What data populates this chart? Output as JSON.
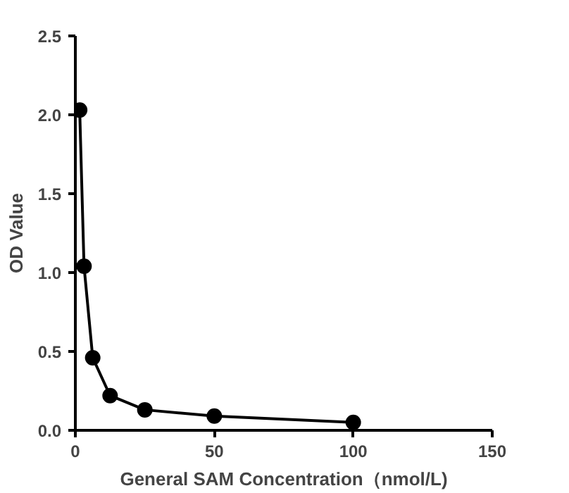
{
  "chart_data": {
    "type": "line",
    "xlabel": "General SAM Concentration（nmol/L)",
    "ylabel": "OD Value",
    "x": [
      1.5625,
      3.125,
      6.25,
      12.5,
      25,
      50,
      100
    ],
    "series": [
      {
        "color": "#000000",
        "values": [
          2.03,
          1.04,
          0.46,
          0.22,
          0.13,
          0.09,
          0.05
        ]
      }
    ],
    "xlim": [
      0,
      150
    ],
    "xticks": [
      0,
      50,
      100,
      150
    ],
    "ylim": [
      0,
      2.5
    ],
    "yticks": [
      {
        "value": 0,
        "label": "0.0"
      },
      {
        "value": 0.5,
        "label": "0.5"
      },
      {
        "value": 1,
        "label": "1.0"
      },
      {
        "value": 1.5,
        "label": "1.5"
      },
      {
        "value": 2,
        "label": "2.0"
      },
      {
        "value": 2.5,
        "label": "2.5"
      }
    ],
    "marker": "circle",
    "line_style": "solid"
  }
}
